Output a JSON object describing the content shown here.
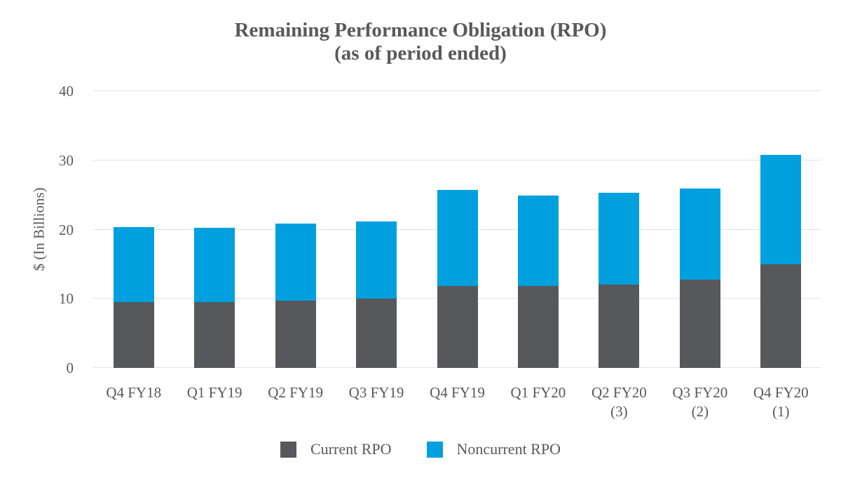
{
  "title": {
    "line1": "Remaining Performance Obligation (RPO)",
    "line2": "(as of period ended)"
  },
  "chart_data": {
    "type": "bar",
    "stacked": true,
    "title": "Remaining Performance Obligation (RPO) (as of period ended)",
    "ylabel": "$ (In Billions)",
    "xlabel": "",
    "categories": [
      "Q4 FY18",
      "Q1 FY19",
      "Q2 FY19",
      "Q3 FY19",
      "Q4 FY19",
      "Q1 FY20",
      "Q2 FY20",
      "Q3 FY20",
      "Q4 FY20"
    ],
    "category_notes": [
      "",
      "",
      "",
      "",
      "",
      "",
      "(3)",
      "(2)",
      "(1)"
    ],
    "series": [
      {
        "name": "Current RPO",
        "color": "#56585B",
        "values": [
          9.5,
          9.5,
          9.7,
          10.0,
          11.9,
          11.8,
          12.1,
          12.8,
          15.0
        ]
      },
      {
        "name": "Noncurrent RPO",
        "color": "#00A0DF",
        "values": [
          10.9,
          10.8,
          11.2,
          11.2,
          13.8,
          13.1,
          13.2,
          13.1,
          15.8
        ]
      }
    ],
    "totals": [
      20.4,
      20.3,
      20.9,
      21.2,
      25.7,
      24.9,
      25.3,
      25.9,
      30.8
    ],
    "ylim": [
      0,
      40
    ],
    "yticks": [
      0,
      10,
      20,
      30,
      40
    ],
    "grid": true,
    "legend_position": "bottom"
  },
  "colors": {
    "background": "#FFFFFF",
    "text": "#595959",
    "gridline": "#E2E2E2",
    "current_rpo": "#56585B",
    "noncurrent_rpo": "#00A0DF"
  }
}
